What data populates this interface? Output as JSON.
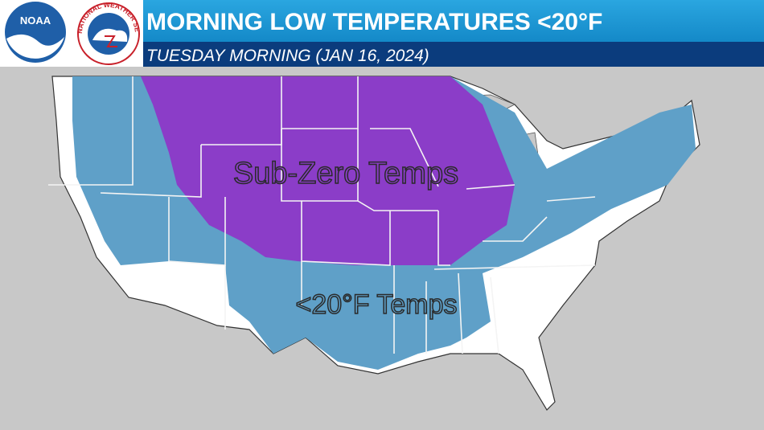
{
  "header": {
    "title": "MORNING LOW TEMPERATURES <20°F",
    "subtitle": "TUESDAY MORNING (JAN 16, 2024)"
  },
  "logos": {
    "noaa": "NOAA",
    "nws": "NATIONAL WEATHER SERVICE"
  },
  "map": {
    "labels": [
      "Sub-Zero Temps",
      "<20°F Temps"
    ]
  }
}
